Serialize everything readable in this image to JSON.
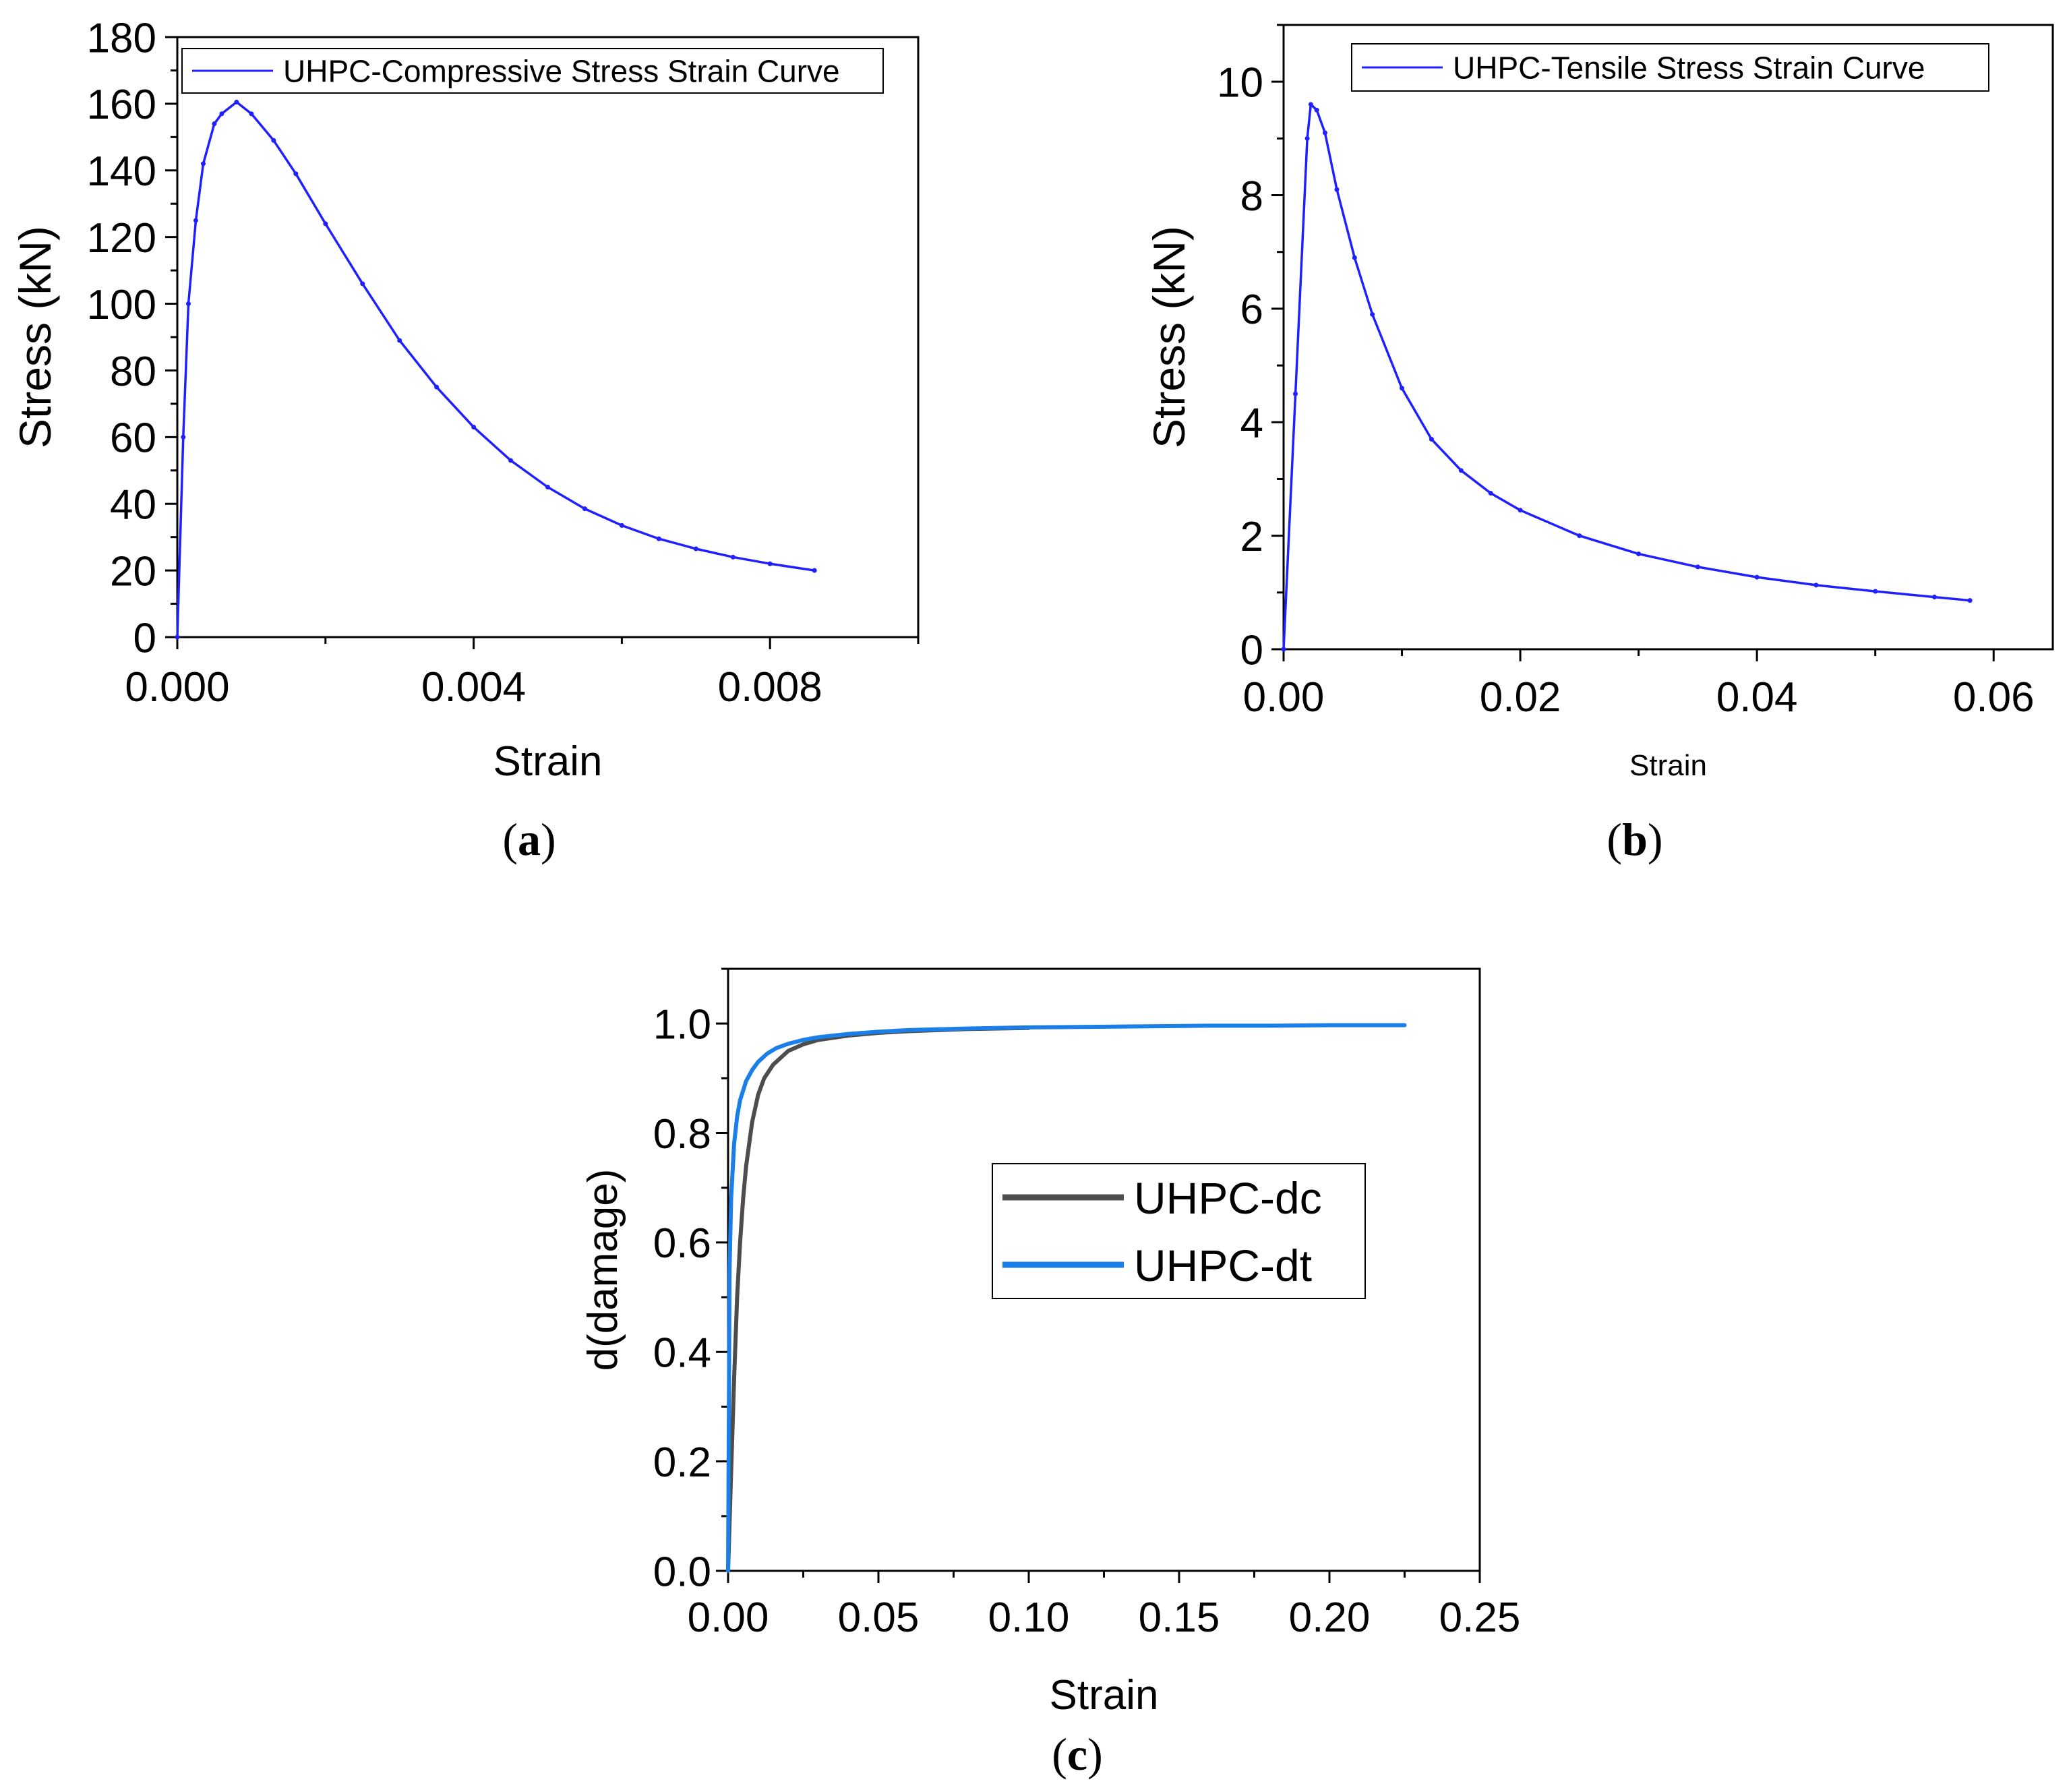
{
  "figure": {
    "panel_labels": [
      {
        "open": "(",
        "letter": "a",
        "close": ")"
      },
      {
        "open": "(",
        "letter": "b",
        "close": ")"
      },
      {
        "open": "(",
        "letter": "c",
        "close": ")"
      }
    ]
  },
  "chart_data": [
    {
      "type": "line",
      "panel": "a",
      "title": "",
      "xlabel": "Strain",
      "ylabel": "Stress (kN)",
      "xlim": [
        0,
        0.01
      ],
      "ylim": [
        0,
        180
      ],
      "xticks": [
        0,
        0.004,
        0.008
      ],
      "xtick_labels": [
        "0.000",
        "0.004",
        "0.008"
      ],
      "yticks": [
        0,
        20,
        40,
        60,
        80,
        100,
        120,
        140,
        160,
        180
      ],
      "ytick_labels": [
        "0",
        "20",
        "40",
        "60",
        "80",
        "100",
        "120",
        "140",
        "160",
        "180"
      ],
      "legend_position": "top-left",
      "colors": {
        "series": "#1f1fff"
      },
      "series": [
        {
          "name": "UHPC-Compressive Stress Strain Curve",
          "x": [
            0,
            8e-05,
            0.00015,
            0.00025,
            0.00035,
            0.0005,
            0.0006,
            0.0008,
            0.001,
            0.0013,
            0.0016,
            0.002,
            0.0025,
            0.003,
            0.0035,
            0.004,
            0.0045,
            0.005,
            0.0055,
            0.006,
            0.0065,
            0.007,
            0.0075,
            0.008,
            0.0086
          ],
          "values": [
            0,
            60,
            100,
            125,
            142,
            154,
            157,
            160.5,
            157,
            149,
            139,
            124,
            106,
            89,
            75,
            63,
            53,
            45,
            38.5,
            33.5,
            29.5,
            26.5,
            24,
            22,
            20
          ]
        }
      ]
    },
    {
      "type": "line",
      "panel": "b",
      "title": "",
      "xlabel": "Strain",
      "ylabel": "Stress (kN)",
      "xlim": [
        0,
        0.065
      ],
      "ylim": [
        0,
        11
      ],
      "xticks": [
        0,
        0.02,
        0.04,
        0.06
      ],
      "xtick_labels": [
        "0.00",
        "0.02",
        "0.04",
        "0.06"
      ],
      "yticks": [
        0,
        2,
        4,
        6,
        8,
        10
      ],
      "ytick_labels": [
        "0",
        "2",
        "4",
        "6",
        "8",
        "10"
      ],
      "legend_position": "top-right",
      "colors": {
        "series": "#1f1fff"
      },
      "series": [
        {
          "name": "UHPC-Tensile Stress Strain Curve",
          "x": [
            0,
            0.001,
            0.002,
            0.0023,
            0.0028,
            0.0035,
            0.0045,
            0.006,
            0.0075,
            0.01,
            0.0125,
            0.015,
            0.0175,
            0.02,
            0.025,
            0.03,
            0.035,
            0.04,
            0.045,
            0.05,
            0.055,
            0.058
          ],
          "values": [
            0,
            4.5,
            9.0,
            9.6,
            9.5,
            9.1,
            8.1,
            6.9,
            5.9,
            4.6,
            3.7,
            3.15,
            2.75,
            2.45,
            2.0,
            1.68,
            1.45,
            1.27,
            1.13,
            1.02,
            0.92,
            0.86
          ]
        }
      ]
    },
    {
      "type": "line",
      "panel": "c",
      "title": "",
      "xlabel": "Strain",
      "ylabel": "d(damage)",
      "xlim": [
        0,
        0.25
      ],
      "ylim": [
        0,
        1.1
      ],
      "xticks": [
        0,
        0.05,
        0.1,
        0.15,
        0.2,
        0.25
      ],
      "xtick_labels": [
        "0.00",
        "0.05",
        "0.10",
        "0.15",
        "0.20",
        "0.25"
      ],
      "yticks": [
        0,
        0.2,
        0.4,
        0.6,
        0.8,
        1.0
      ],
      "ytick_labels": [
        "0.0",
        "0.2",
        "0.4",
        "0.6",
        "0.8",
        "1.0"
      ],
      "legend_position": "center-right",
      "colors": {
        "UHPC-dc": "#4d4d4d",
        "UHPC-dt": "#1a7fe6"
      },
      "series": [
        {
          "name": "UHPC-dc",
          "x": [
            0,
            0.001,
            0.002,
            0.003,
            0.004,
            0.005,
            0.006,
            0.008,
            0.01,
            0.012,
            0.015,
            0.02,
            0.025,
            0.03,
            0.04,
            0.05,
            0.06,
            0.07,
            0.08,
            0.1
          ],
          "values": [
            0,
            0.18,
            0.35,
            0.5,
            0.6,
            0.68,
            0.74,
            0.82,
            0.87,
            0.9,
            0.925,
            0.95,
            0.962,
            0.97,
            0.978,
            0.983,
            0.986,
            0.988,
            0.99,
            0.992
          ]
        },
        {
          "name": "UHPC-dt",
          "x": [
            0,
            0.0005,
            0.001,
            0.002,
            0.003,
            0.004,
            0.006,
            0.008,
            0.01,
            0.013,
            0.016,
            0.02,
            0.025,
            0.03,
            0.04,
            0.05,
            0.06,
            0.08,
            0.1,
            0.12,
            0.14,
            0.16,
            0.18,
            0.2,
            0.225
          ],
          "values": [
            0,
            0.55,
            0.68,
            0.78,
            0.83,
            0.86,
            0.895,
            0.915,
            0.93,
            0.945,
            0.955,
            0.963,
            0.97,
            0.975,
            0.981,
            0.985,
            0.988,
            0.991,
            0.993,
            0.994,
            0.995,
            0.996,
            0.996,
            0.997,
            0.997
          ]
        }
      ]
    }
  ]
}
